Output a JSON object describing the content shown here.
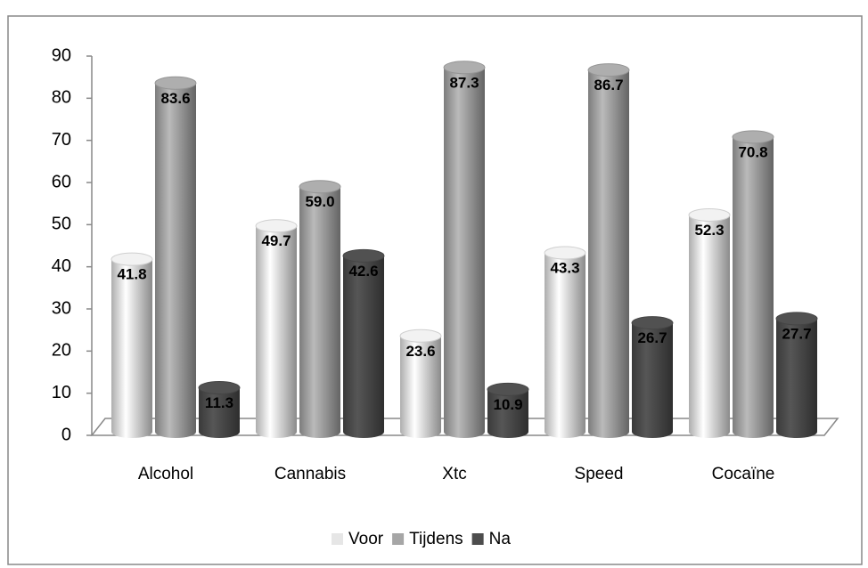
{
  "chart_data": {
    "type": "bar",
    "categories": [
      "Alcohol",
      "Cannabis",
      "Xtc",
      "Speed",
      "Cocaïne"
    ],
    "series": [
      {
        "name": "Voor",
        "color": "#e6e6e6",
        "values": [
          41.8,
          49.7,
          23.6,
          43.3,
          52.3
        ],
        "value_labels": [
          "41.8",
          "49.7",
          "23.6",
          "43.3",
          "52.3"
        ]
      },
      {
        "name": "Tijdens",
        "color": "#a6a6a6",
        "values": [
          83.6,
          59,
          87.3,
          86.7,
          70.8
        ],
        "value_labels": [
          "83.6",
          "59.0",
          "87.3",
          "86.7",
          "70.8"
        ]
      },
      {
        "name": "Na",
        "color": "#4d4d4d",
        "values": [
          11.3,
          42.6,
          10.9,
          26.7,
          27.7
        ],
        "value_labels": [
          "11.3",
          "42.6",
          "10.9",
          "26.7",
          "27.7"
        ]
      }
    ],
    "ylim": [
      0,
      90
    ],
    "yticks": [
      0,
      10,
      20,
      30,
      40,
      50,
      60,
      70,
      80,
      90
    ],
    "grid": false,
    "legend": "bottom"
  }
}
